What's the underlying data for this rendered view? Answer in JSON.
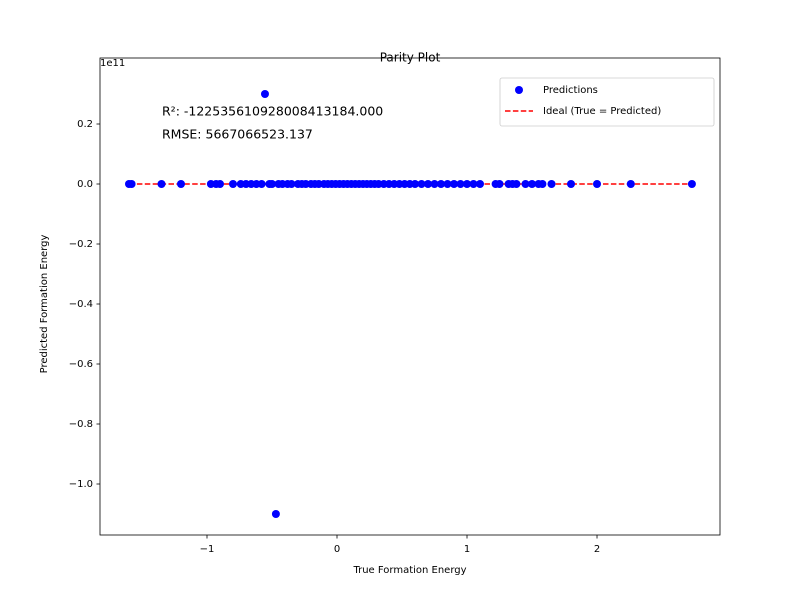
{
  "chart_data": {
    "type": "scatter",
    "title": "Parity Plot",
    "x_label": "True Formation Energy",
    "y_label": "Predicted Formation Energy",
    "y_offset_label": "1e11",
    "annotations": [
      "R²: -122535610928008413184.000",
      "RMSE: 5667066523.137"
    ],
    "xlim": [
      -1.823,
      2.946
    ],
    "ylim": [
      -1.17,
      0.42
    ],
    "xticks": [
      {
        "value": -1,
        "label": "−1"
      },
      0,
      1,
      2
    ],
    "yticks": [
      {
        "value": -1.0,
        "label": "−1.0"
      },
      {
        "value": -0.8,
        "label": "−0.8"
      },
      {
        "value": -0.6,
        "label": "−0.6"
      },
      {
        "value": -0.4,
        "label": "−0.4"
      },
      {
        "value": -0.2,
        "label": "−0.2"
      },
      {
        "value": 0.0,
        "label": "0.0"
      },
      0.2
    ],
    "legend": "upper right",
    "series": [
      {
        "name": "Predictions",
        "kind": "points",
        "color": "#0000ff",
        "x": [
          -1.6,
          -1.58,
          -1.35,
          -1.2,
          -0.97,
          -0.93,
          -0.9,
          -0.8,
          -0.74,
          -0.7,
          -0.66,
          -0.62,
          -0.58,
          -0.554,
          -0.52,
          -0.47,
          -0.5,
          -0.45,
          -0.42,
          -0.38,
          -0.35,
          -0.3,
          -0.27,
          -0.24,
          -0.2,
          -0.17,
          -0.14,
          -0.1,
          -0.07,
          -0.04,
          -0.01,
          0.02,
          0.05,
          0.08,
          0.11,
          0.14,
          0.17,
          0.2,
          0.23,
          0.26,
          0.29,
          0.32,
          0.36,
          0.4,
          0.44,
          0.48,
          0.52,
          0.56,
          0.6,
          0.65,
          0.7,
          0.75,
          0.8,
          0.85,
          0.9,
          0.95,
          1.0,
          1.05,
          1.1,
          1.22,
          1.25,
          1.32,
          1.35,
          1.38,
          1.45,
          1.5,
          1.55,
          1.58,
          1.65,
          1.8,
          2.0,
          2.26,
          2.73
        ],
        "values": [
          0,
          0,
          0,
          0,
          0,
          0,
          0,
          0,
          0,
          0,
          0,
          0,
          0,
          0.3,
          0,
          -1.1,
          0,
          0,
          0,
          0,
          0,
          0,
          0,
          0,
          0,
          0,
          0,
          0,
          0,
          0,
          0,
          0,
          0,
          0,
          0,
          0,
          0,
          0,
          0,
          0,
          0,
          0,
          0,
          0,
          0,
          0,
          0,
          0,
          0,
          0,
          0,
          0,
          0,
          0,
          0,
          0,
          0,
          0,
          0,
          0,
          0,
          0,
          0,
          0,
          0,
          0,
          0,
          0,
          0,
          0,
          0,
          0,
          0
        ]
      },
      {
        "name": "Ideal (True = Predicted)",
        "kind": "line",
        "dash": true,
        "color": "#ff0000",
        "x": [
          -1.6,
          2.73
        ],
        "values": [
          -1.6e-11,
          2.73e-11
        ]
      }
    ]
  }
}
